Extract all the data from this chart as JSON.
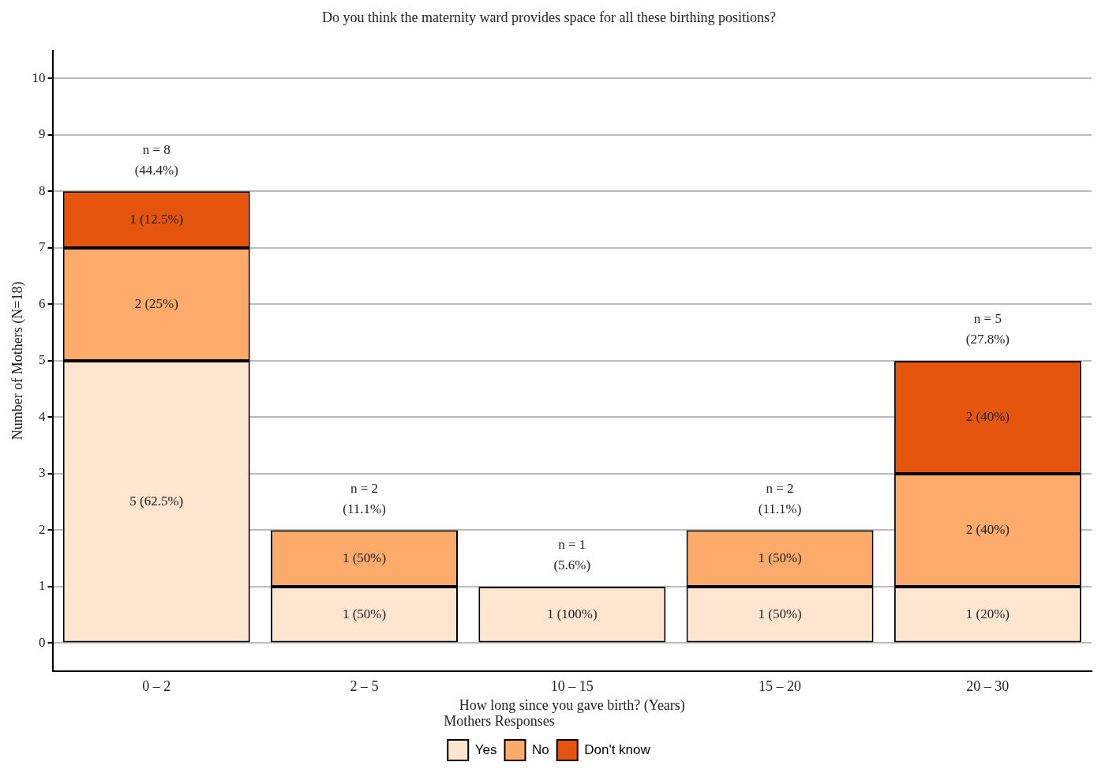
{
  "chart_data": {
    "type": "bar",
    "title": "Do you think the maternity ward provides space for all these birthing positions?",
    "xlabel": "How long since you gave birth? (Years)",
    "ylabel": "Number of Mothers (N=18)",
    "legend_title": "Mothers Responses",
    "categories": [
      "0 – 2",
      "2 – 5",
      "10 – 15",
      "15 – 20",
      "20 – 30"
    ],
    "series": [
      {
        "name": "Yes",
        "color": "#fde5cf",
        "values": [
          5,
          1,
          1,
          1,
          1
        ],
        "value_labels": [
          "5 (62.5%)",
          "1 (50%)",
          "1 (100%)",
          "1 (50%)",
          "1 (20%)"
        ]
      },
      {
        "name": "No",
        "color": "#fcab6b",
        "values": [
          2,
          1,
          null,
          1,
          2
        ],
        "value_labels": [
          "2 (25%)",
          "1 (50%)",
          null,
          "1 (50%)",
          "2 (40%)"
        ]
      },
      {
        "name": "Don't know",
        "color": "#e6550d",
        "values": [
          1,
          null,
          null,
          null,
          2
        ],
        "value_labels": [
          "1 (12.5%)",
          null,
          null,
          null,
          "2 (40%)"
        ]
      }
    ],
    "stacked": true,
    "totals": [
      "n = 8\n(44.4%)",
      "n = 2\n(11.1%)",
      "n = 1\n(5.6%)",
      "n = 2\n(11.1%)",
      "n = 5\n(27.8%)"
    ],
    "ylim": [
      -0.5,
      10.5
    ],
    "yticks": [
      0,
      1,
      2,
      3,
      4,
      5,
      6,
      7,
      8,
      9,
      10
    ],
    "grid": "y",
    "legend": "bottom"
  }
}
